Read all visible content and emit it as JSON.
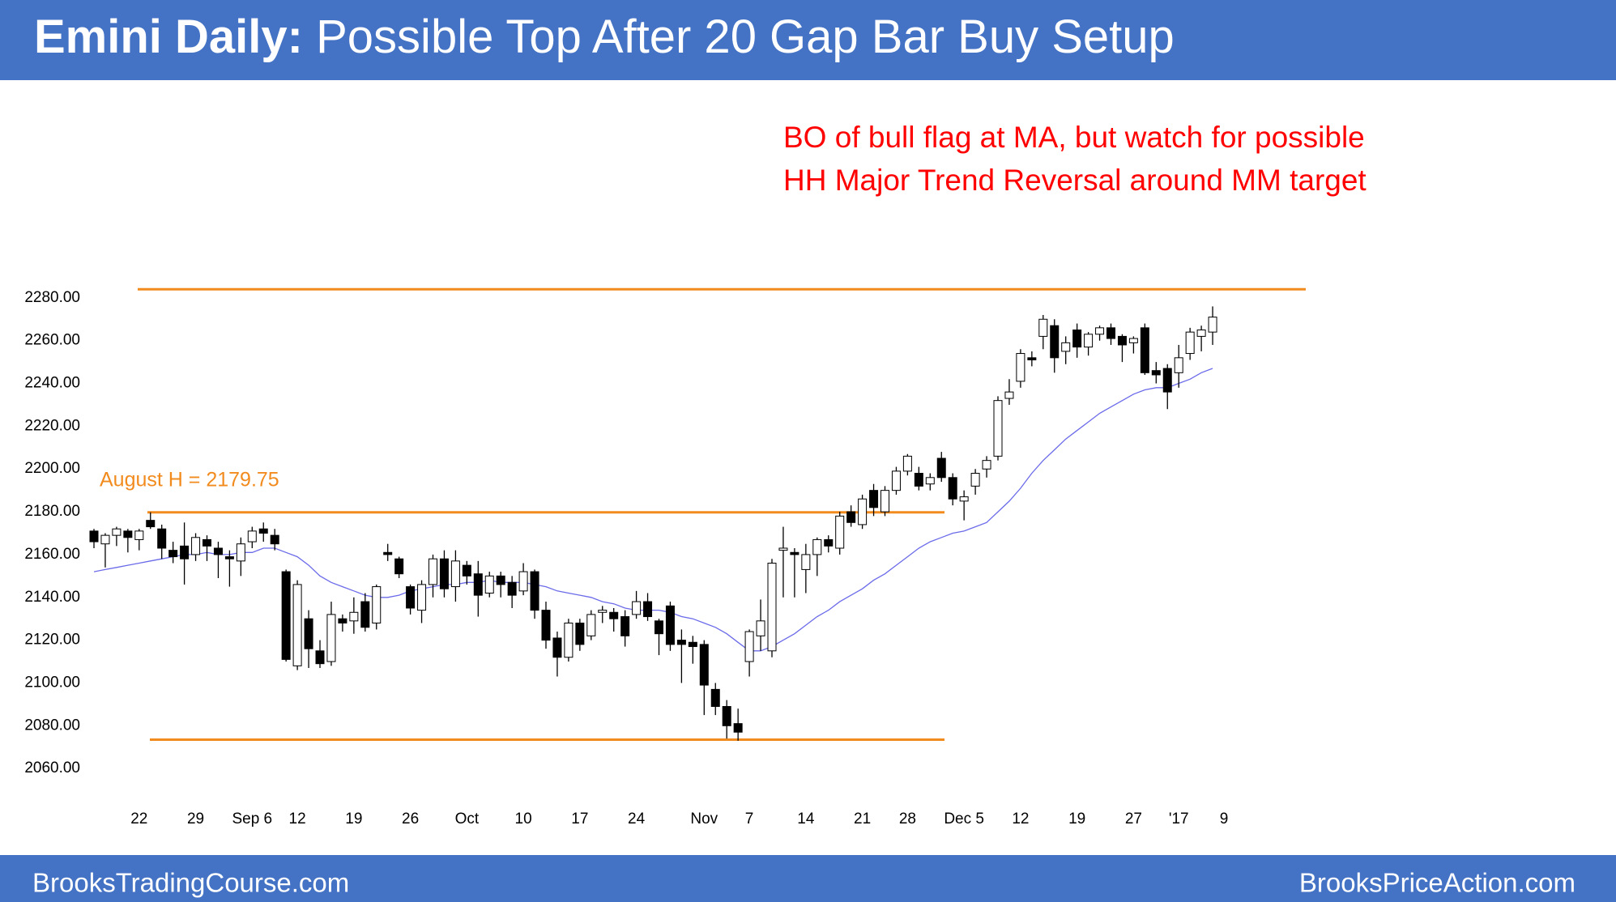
{
  "chart_data": {
    "type": "candlestick",
    "title_lead": "Emini Daily:",
    "title": "Possible Top After 20 Gap Bar Buy Setup",
    "annotation": [
      "BO of bull flag at MA, but watch for possible",
      "HH Major Trend Reversal around MM target"
    ],
    "categories": [
      null,
      null,
      null,
      null,
      "22",
      null,
      null,
      null,
      null,
      "29",
      null,
      null,
      null,
      null,
      "Sep 6",
      null,
      null,
      null,
      "12",
      null,
      null,
      null,
      null,
      "19",
      null,
      null,
      null,
      null,
      "26",
      null,
      null,
      null,
      null,
      "Oct",
      null,
      null,
      null,
      null,
      "10",
      null,
      null,
      null,
      null,
      "17",
      null,
      null,
      null,
      null,
      "24",
      null,
      null,
      null,
      null,
      null,
      "Nov",
      null,
      null,
      null,
      "7",
      null,
      null,
      null,
      null,
      "14",
      null,
      null,
      null,
      null,
      "21",
      null,
      null,
      null,
      "28",
      null,
      null,
      null,
      null,
      "Dec 5",
      null,
      null,
      null,
      null,
      "12",
      null,
      null,
      null,
      null,
      "19",
      null,
      null,
      null,
      null,
      "27",
      null,
      null,
      null,
      "'17",
      null,
      null,
      null,
      "9"
    ],
    "open": [
      2171,
      2165,
      2169,
      2171,
      2167,
      2176,
      2172,
      2162,
      2164,
      2160,
      2167,
      2163,
      2159,
      2157,
      2166,
      2172,
      2169,
      2152,
      2108,
      2130,
      2115,
      2110,
      2130,
      2129,
      2138,
      2128,
      2161,
      2158,
      2145,
      2134,
      2146,
      2158,
      2145,
      2155,
      2151,
      2142,
      2150,
      2147,
      2143,
      2152,
      2134,
      2121,
      2112,
      2128,
      2122,
      2133,
      2133,
      2131,
      2132,
      2138,
      2129,
      2136,
      2120,
      2119,
      2118,
      2097,
      2089,
      2081,
      2110,
      2122,
      2115,
      2162,
      2161,
      2153,
      2160,
      2167,
      2163,
      2180,
      2174,
      2190,
      2180,
      2190,
      2199,
      2198,
      2193,
      2205,
      2196,
      2185,
      2192,
      2200,
      2206,
      2233,
      2241,
      2252,
      2262,
      2267,
      2255,
      2265,
      2257,
      2263,
      2266,
      2262,
      2259,
      2266,
      2246,
      2247,
      2245,
      2254,
      2262,
      2264,
      null
    ],
    "high": [
      2172,
      2170,
      2173,
      2172,
      2172,
      2179.75,
      2174,
      2166,
      2175,
      2170,
      2169,
      2166,
      2162,
      2168,
      2173,
      2175,
      2172,
      2153,
      2148,
      2134,
      2120,
      2138,
      2132,
      2140,
      2142,
      2146,
      2165,
      2159,
      2146,
      2148,
      2160,
      2162,
      2162,
      2157,
      2157,
      2152,
      2152,
      2150,
      2156,
      2153,
      2138,
      2124,
      2130,
      2130,
      2134,
      2136,
      2135,
      2134,
      2143,
      2142,
      2130,
      2138,
      2125,
      2122,
      2120,
      2100,
      2092,
      2088,
      2125,
      2139,
      2158,
      2173,
      2163,
      2165,
      2168,
      2169,
      2180,
      2183,
      2188,
      2193,
      2192,
      2201,
      2207,
      2201,
      2198,
      2208,
      2198,
      2190,
      2200,
      2206,
      2234,
      2242,
      2256,
      2255,
      2272,
      2270,
      2262,
      2268,
      2264,
      2267,
      2268,
      2263,
      2262,
      2268,
      2250,
      2249,
      2258,
      2266,
      2267,
      2276,
      null
    ],
    "low": [
      2163,
      2154,
      2164,
      2161,
      2162,
      2172,
      2158,
      2156,
      2146,
      2157,
      2157,
      2149,
      2145,
      2150,
      2163,
      2166,
      2162,
      2110,
      2106,
      2107,
      2107,
      2108,
      2124,
      2123,
      2124,
      2125,
      2157,
      2149,
      2132,
      2128,
      2140,
      2140,
      2138,
      2146,
      2131,
      2140,
      2140,
      2135,
      2141,
      2130,
      2116,
      2103,
      2110,
      2115,
      2120,
      2128,
      2124,
      2117,
      2130,
      2129,
      2113,
      2115,
      2100,
      2109,
      2085,
      2085,
      2074,
      2073,
      2103,
      2115,
      2112,
      2140,
      2140,
      2142,
      2150,
      2161,
      2160,
      2173,
      2172,
      2178,
      2178,
      2188,
      2197,
      2190,
      2190,
      2194,
      2183,
      2176,
      2188,
      2196,
      2204,
      2230,
      2238,
      2248,
      2256,
      2245,
      2249,
      2252,
      2253,
      2260,
      2258,
      2250,
      2254,
      2244,
      2240,
      2228,
      2238,
      2251,
      2255,
      2258,
      null
    ],
    "close": [
      2166,
      2169,
      2172,
      2168,
      2171,
      2173,
      2163,
      2159,
      2158,
      2168,
      2164,
      2160,
      2158,
      2165,
      2171,
      2170,
      2165,
      2111,
      2146,
      2116,
      2109,
      2132,
      2128,
      2133,
      2126,
      2145,
      2160,
      2151,
      2135,
      2146,
      2158,
      2144,
      2157,
      2150,
      2141,
      2150,
      2146,
      2141,
      2152,
      2134,
      2120,
      2112,
      2128,
      2118,
      2132,
      2134,
      2130,
      2122,
      2138,
      2131,
      2123,
      2118,
      2118,
      2117,
      2099,
      2089,
      2080,
      2077,
      2124,
      2129,
      2156,
      2163,
      2160,
      2160,
      2167,
      2164,
      2178,
      2175,
      2186,
      2182,
      2190,
      2199,
      2206,
      2192,
      2196,
      2196,
      2186,
      2187,
      2198,
      2204,
      2232,
      2236,
      2254,
      2251,
      2270,
      2252,
      2259,
      2257,
      2263,
      2266,
      2261,
      2258,
      2261,
      2245,
      2244,
      2236,
      2252,
      2264,
      2265,
      2271,
      null
    ],
    "up_color": "#ffffff",
    "down_color": "#000000",
    "ma": {
      "color": "#6b6bea",
      "values": [
        2152,
        2153,
        2154,
        2155,
        2156,
        2157,
        2158,
        2159,
        2160,
        2160,
        2161,
        2160,
        2160,
        2161,
        2161,
        2163,
        2163,
        2161,
        2159,
        2155,
        2150,
        2147,
        2145,
        2143,
        2141,
        2140,
        2140,
        2141,
        2143,
        2144,
        2145,
        2146,
        2146,
        2147,
        2147,
        2148,
        2147,
        2147,
        2147,
        2146,
        2145,
        2143,
        2142,
        2141,
        2140,
        2138,
        2137,
        2135,
        2134,
        2134,
        2134,
        2133,
        2131,
        2130,
        2128,
        2126,
        2123,
        2119,
        2115,
        2115,
        2117,
        2120,
        2123,
        2127,
        2131,
        2134,
        2138,
        2141,
        2144,
        2148,
        2151,
        2155,
        2159,
        2163,
        2166,
        2168,
        2170,
        2171,
        2173,
        2175,
        2180,
        2185,
        2191,
        2198,
        2204,
        2209,
        2214,
        2218,
        2222,
        2226,
        2229,
        2232,
        2235,
        2237,
        2238,
        2238,
        2240,
        2242,
        2245,
        2247,
        null
      ]
    },
    "hlines": [
      {
        "value": 2284,
        "color": "#f28b1e"
      },
      {
        "value": 2179.75,
        "label": "August H = 2179.75",
        "color": "#f28b1e"
      },
      {
        "value": 2073.5,
        "color": "#f28b1e"
      }
    ],
    "ylim": [
      2040,
      2300
    ],
    "yticks": [
      {
        "value": 2060,
        "label": "2060.00"
      },
      {
        "value": 2080,
        "label": "2080.00"
      },
      {
        "value": 2100,
        "label": "2100.00"
      },
      {
        "value": 2120,
        "label": "2120.00"
      },
      {
        "value": 2140,
        "label": "2140.00"
      },
      {
        "value": 2160,
        "label": "2160.00"
      },
      {
        "value": 2180,
        "label": "2180.00"
      },
      {
        "value": 2200,
        "label": "2200.00"
      },
      {
        "value": 2220,
        "label": "2220.00"
      },
      {
        "value": 2240,
        "label": "2240.00"
      },
      {
        "value": 2260,
        "label": "2260.00"
      },
      {
        "value": 2280,
        "label": "2280.00"
      }
    ],
    "grid": false
  },
  "footer": {
    "left": "BrooksTradingCourse.com",
    "right": "BrooksPriceAction.com"
  }
}
